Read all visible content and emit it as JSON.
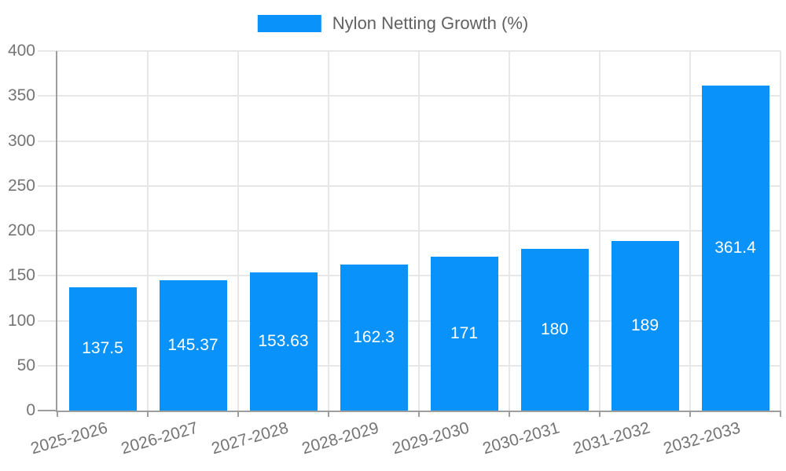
{
  "legend": {
    "label": "Nylon Netting Growth (%)"
  },
  "colors": {
    "bar": "#0892fa",
    "axis": "#9e9e9e",
    "grid": "#e7e7e7",
    "tick_label": "#757575",
    "legend_text": "#616161",
    "bar_label": "#ffffff",
    "background": "#ffffff"
  },
  "chart_data": {
    "type": "bar",
    "title": "Nylon Netting Growth (%)",
    "categories": [
      "2025-2026",
      "2026-2027",
      "2027-2028",
      "2028-2029",
      "2029-2030",
      "2030-2031",
      "2031-2032",
      "2032-2033"
    ],
    "values": [
      137.5,
      145.37,
      153.63,
      162.3,
      171,
      180,
      189,
      361.4
    ],
    "value_labels": [
      "137.5",
      "145.37",
      "153.63",
      "162.3",
      "171",
      "180",
      "189",
      "361.4"
    ],
    "xlabel": "",
    "ylabel": "",
    "ylim": [
      0,
      400
    ],
    "yticks": [
      0,
      50,
      100,
      150,
      200,
      250,
      300,
      350,
      400
    ],
    "grid": true,
    "legend_position": "top",
    "x_tick_rotation_deg": -16,
    "bar_label_position": "center"
  }
}
